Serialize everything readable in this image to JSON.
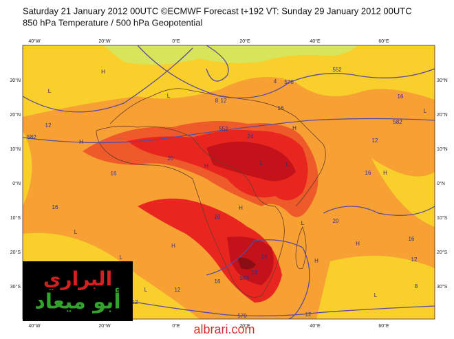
{
  "header": {
    "line1": "Saturday 21 January 2012 00UTC ©ECMWF Forecast t+192 VT: Sunday 29 January 2012 00UTC",
    "line2": "850 hPa Temperature / 500 hPa Geopotential"
  },
  "map": {
    "lon_labels": [
      "40°W",
      "20°W",
      "0°E",
      "20°E",
      "40°E",
      "60°E"
    ],
    "lat_labels": [
      "30°N",
      "20°N",
      "10°N",
      "0°N",
      "10°S",
      "20°S",
      "30°S"
    ],
    "contour_labels": [
      552,
      570,
      582,
      582,
      16,
      16,
      12,
      12,
      8,
      12,
      4,
      20,
      24,
      16,
      16,
      16,
      16,
      12,
      8,
      16,
      12,
      12,
      570,
      24,
      28,
      12,
      20,
      20,
      552,
      588
    ],
    "pressure_marks": [
      "H",
      "H",
      "H",
      "H",
      "H",
      "H",
      "H",
      "H",
      "H",
      "L",
      "L",
      "L",
      "L",
      "L",
      "L",
      "L",
      "L",
      "L",
      "L"
    ]
  },
  "logo": {
    "line1": "البراري",
    "line2": "أبو ميعاد"
  },
  "watermark": "albrari.com"
}
